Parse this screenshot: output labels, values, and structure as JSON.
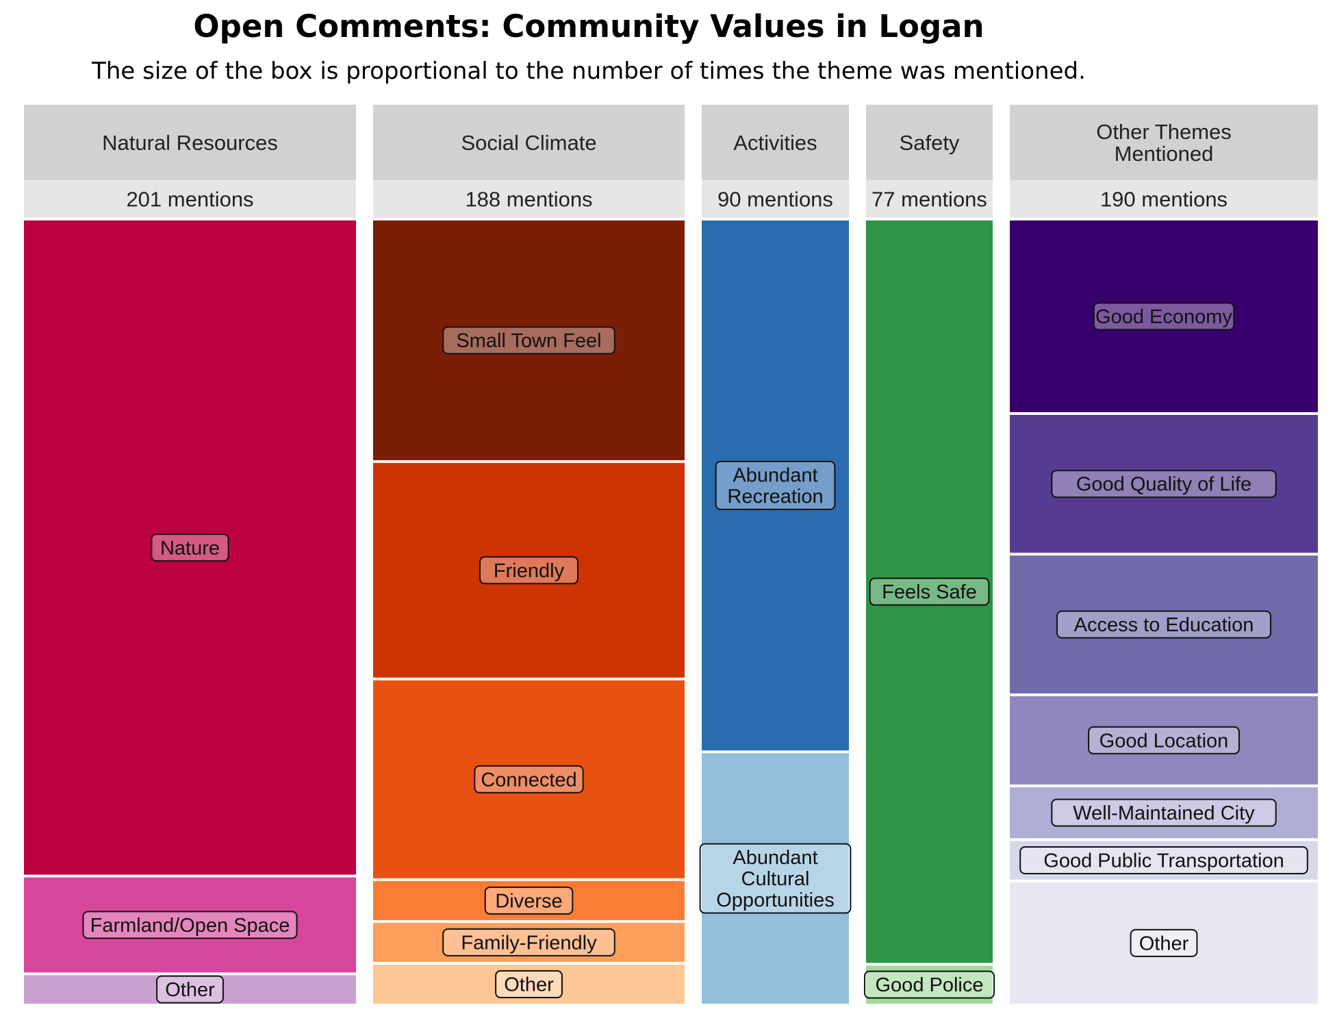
{
  "chart_data": {
    "type": "treemap",
    "title": "Open Comments: Community Values in Logan",
    "subtitle": "The size of the box is proportional to the number of times the theme was mentioned.",
    "groups": [
      {
        "name": "Natural Resources",
        "mentions_label": "201 mentions",
        "total": 201,
        "items": [
          {
            "label": "Nature",
            "value": 168,
            "color": "#bd0041"
          },
          {
            "label": "Farmland/Open Space",
            "value": 25,
            "color": "#d6469c"
          },
          {
            "label": "Other",
            "value": 8,
            "color": "#c9a1cf"
          }
        ]
      },
      {
        "name": "Social Climate",
        "mentions_label": "188 mentions",
        "total": 188,
        "items": [
          {
            "label": "Small Town Feel",
            "value": 58,
            "color": "#7a1e06"
          },
          {
            "label": "Friendly",
            "value": 52,
            "color": "#cd3303"
          },
          {
            "label": "Connected",
            "value": 48,
            "color": "#e95112"
          },
          {
            "label": "Diverse",
            "value": 10,
            "color": "#fb7c35"
          },
          {
            "label": "Family-Friendly",
            "value": 10,
            "color": "#fc9f5c"
          },
          {
            "label": "Other",
            "value": 10,
            "color": "#fcc695"
          }
        ]
      },
      {
        "name": "Activities",
        "mentions_label": "90 mentions",
        "total": 90,
        "items": [
          {
            "label": "Abundant\nRecreation",
            "value": 61,
            "color": "#2b6cae"
          },
          {
            "label": "Abundant\nCultural\nOpportunities",
            "value": 29,
            "color": "#93bfdc"
          }
        ]
      },
      {
        "name": "Safety",
        "mentions_label": "77 mentions",
        "total": 77,
        "items": [
          {
            "label": "Feels Safe",
            "value": 73,
            "color": "#2e9446"
          },
          {
            "label": "Good Police",
            "value": 4,
            "color": "#a2d99b"
          }
        ]
      },
      {
        "name": "Other Themes\nMentioned",
        "mentions_label": "190 mentions",
        "total": 190,
        "items": [
          {
            "label": "Good Economy",
            "value": 47,
            "color": "#38006c"
          },
          {
            "label": "Good Quality of Life",
            "value": 34,
            "color": "#553c90"
          },
          {
            "label": "Access to Education",
            "value": 34,
            "color": "#6f6aaa"
          },
          {
            "label": "Good Location",
            "value": 22,
            "color": "#8f88be"
          },
          {
            "label": "Well-Maintained City",
            "value": 13,
            "color": "#b1aed6"
          },
          {
            "label": "Good Public Transportation",
            "value": 10,
            "color": "#d7d7ea"
          },
          {
            "label": "Other",
            "value": 30,
            "color": "#e9e6f2"
          }
        ]
      }
    ],
    "header_color": "#d1d1d1",
    "count_color": "#e6e6e6"
  }
}
